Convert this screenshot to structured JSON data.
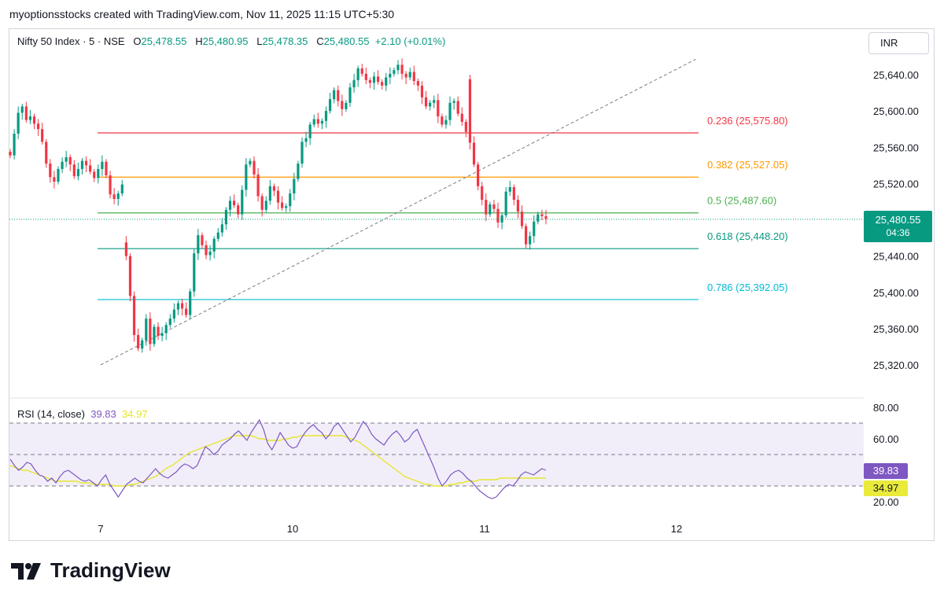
{
  "header": {
    "caption": "myoptionsstocks created with TradingView.com, Nov 11, 2025 11:15 UTC+5:30"
  },
  "legend": {
    "symbol": "Nifty 50 Index · 5 · NSE",
    "open_label": "O",
    "open": "25,478.55",
    "high_label": "H",
    "high": "25,480.95",
    "low_label": "L",
    "low": "25,478.35",
    "close_label": "C",
    "close": "25,480.55",
    "change": "+2.10 (+0.01%)"
  },
  "currency_button": "INR",
  "price_tag": {
    "price": "25,480.55",
    "countdown": "04:36"
  },
  "rsi": {
    "title": "RSI (14, close)",
    "value": "39.83",
    "ma": "34.97"
  },
  "brand": {
    "name": "TradingView"
  },
  "colors": {
    "up": "#089981",
    "down": "#f23645",
    "rsi": "#7e57c2",
    "rsi_ma": "#e5e52b",
    "fib_0236": "#f23645",
    "fib_0382": "#ff9800",
    "fib_05": "#4caf50",
    "fib_0618": "#089981",
    "fib_0786": "#00bcd4"
  },
  "chart_data": {
    "type": "candlestick",
    "price_axis": {
      "ylim": [
        25300,
        25675
      ],
      "ticks": [
        25320,
        25360,
        25400,
        25440,
        25480,
        25520,
        25560,
        25600,
        25640
      ],
      "tick_labels": [
        "25,320.00",
        "25,360.00",
        "25,400.00",
        "25,440.00",
        "25,480.00",
        "25,520.00",
        "25,560.00",
        "25,600.00",
        "25,640.00"
      ]
    },
    "time_axis": {
      "labels": [
        "7",
        "10",
        "11",
        "12"
      ],
      "session_index": [
        0,
        1,
        2,
        3
      ]
    },
    "fib_levels": [
      {
        "ratio": "0.236",
        "value": 25575.8,
        "label": "0.236 (25,575.80)"
      },
      {
        "ratio": "0.382",
        "value": 25527.05,
        "label": "0.382 (25,527.05)"
      },
      {
        "ratio": "0.5",
        "value": 25487.6,
        "label": "0.5 (25,487.60)"
      },
      {
        "ratio": "0.618",
        "value": 25448.2,
        "label": "0.618 (25,448.20)"
      },
      {
        "ratio": "0.786",
        "value": 25392.05,
        "label": "0.786 (25,392.05)"
      }
    ],
    "trendline": {
      "from": {
        "session": 0.0,
        "price": 25320
      },
      "to": {
        "session": 3.1,
        "price": 25657
      }
    },
    "last_price": 25480.55,
    "closes": [
      25551,
      25575,
      25598,
      25605,
      25590,
      25594,
      25586,
      25580,
      25566,
      25542,
      25527,
      25522,
      25536,
      25544,
      25549,
      25541,
      25528,
      25536,
      25545,
      25540,
      25533,
      25526,
      25536,
      25544,
      25529,
      25508,
      25503,
      25509,
      25519,
      25440,
      25396,
      25353,
      25338,
      25347,
      25371,
      25343,
      25362,
      25352,
      25355,
      25364,
      25371,
      25381,
      25388,
      25382,
      25375,
      25401,
      25443,
      25463,
      25452,
      25441,
      25445,
      25459,
      25466,
      25475,
      25491,
      25501,
      25496,
      25486,
      25513,
      25541,
      25545,
      25530,
      25506,
      25491,
      25501,
      25517,
      25512,
      25499,
      25493,
      25495,
      25509,
      25525,
      25542,
      25566,
      25570,
      25585,
      25591,
      25586,
      25589,
      25600,
      25613,
      25623,
      25611,
      25602,
      25609,
      25626,
      25634,
      25647,
      25641,
      25634,
      25631,
      25638,
      25632,
      25628,
      25637,
      25641,
      25645,
      25651,
      25641,
      25637,
      25643,
      25633,
      25628,
      25615,
      25605,
      25609,
      25612,
      25594,
      25585,
      25590,
      25609,
      25611,
      25597,
      25588,
      25577,
      25565,
      25541,
      25517,
      25502,
      25486,
      25497,
      25492,
      25477,
      25485,
      25511,
      25516,
      25502,
      25489,
      25473,
      25453,
      25462,
      25478,
      25486,
      25484,
      25481
    ],
    "rsi_values": [
      47,
      43,
      40,
      42,
      45,
      44,
      40,
      37,
      36,
      33,
      35,
      32,
      36,
      39,
      40,
      38,
      36,
      34,
      33,
      34,
      32,
      30,
      34,
      37,
      31,
      27,
      23,
      27,
      31,
      33,
      35,
      33,
      32,
      35,
      38,
      41,
      38,
      36,
      35,
      37,
      39,
      42,
      44,
      43,
      41,
      43,
      49,
      55,
      53,
      50,
      52,
      56,
      58,
      60,
      63,
      65,
      62,
      59,
      64,
      68,
      72,
      66,
      57,
      53,
      58,
      64,
      60,
      56,
      54,
      55,
      60,
      64,
      67,
      69,
      66,
      64,
      60,
      63,
      68,
      70,
      66,
      62,
      58,
      61,
      66,
      71,
      68,
      63,
      60,
      58,
      56,
      60,
      63,
      65,
      62,
      58,
      60,
      64,
      66,
      60,
      54,
      48,
      42,
      35,
      30,
      33,
      37,
      39,
      40,
      38,
      35,
      33,
      30,
      27,
      25,
      23,
      22,
      23,
      26,
      29,
      31,
      30,
      33,
      37,
      39,
      38,
      37,
      39,
      41,
      40
    ],
    "rsi_ma_values": [
      43,
      42,
      41,
      40,
      40,
      39,
      38,
      37,
      36,
      35,
      34,
      33,
      33,
      33,
      33,
      33,
      33,
      32,
      32,
      32,
      31,
      31,
      31,
      31,
      31,
      30,
      30,
      30,
      30,
      31,
      31,
      32,
      33,
      34,
      35,
      36,
      38,
      40,
      42,
      43,
      45,
      47,
      49,
      51,
      52,
      53,
      54,
      55,
      56,
      57,
      58,
      59,
      60,
      61,
      62,
      62,
      62,
      62,
      62,
      61,
      60,
      60,
      59,
      59,
      59,
      59,
      60,
      60,
      61,
      61,
      62,
      62,
      62,
      62,
      62,
      62,
      62,
      62,
      62,
      62,
      62,
      61,
      60,
      59,
      58,
      56,
      54,
      52,
      50,
      48,
      46,
      44,
      42,
      40,
      38,
      36,
      35,
      34,
      33,
      32,
      31,
      31,
      30,
      30,
      30,
      30,
      31,
      31,
      32,
      32,
      33,
      33,
      33,
      34,
      34,
      34,
      34,
      34,
      35,
      35,
      35,
      35,
      35,
      35,
      35,
      35,
      35,
      35,
      35,
      35
    ],
    "rsi_axis": {
      "ticks": [
        20,
        60,
        80
      ],
      "tick_labels": [
        "20.00",
        "60.00",
        "80.00"
      ],
      "bands": [
        30,
        50,
        70
      ]
    }
  }
}
